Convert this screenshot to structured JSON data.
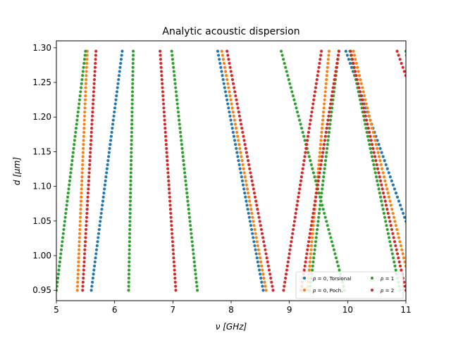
{
  "chart_data": {
    "type": "scatter",
    "title": "Analytic acoustic dispersion",
    "xlabel": "ν [GHz]",
    "ylabel": "d [μm]",
    "xlim": [
      5,
      11
    ],
    "ylim": [
      0.935,
      1.31
    ],
    "xticks": [
      5,
      6,
      7,
      8,
      9,
      10,
      11
    ],
    "yticks": [
      0.95,
      1.0,
      1.05,
      1.1,
      1.15,
      1.2,
      1.25,
      1.3
    ],
    "xtick_labels": [
      "5",
      "6",
      "7",
      "8",
      "9",
      "10",
      "11"
    ],
    "ytick_labels": [
      "0.95",
      "1.00",
      "1.05",
      "1.10",
      "1.15",
      "1.20",
      "1.25",
      "1.30"
    ],
    "legend": {
      "placement": "lower-right",
      "ncol": 2
    },
    "d_range": [
      0.95,
      1.295
    ],
    "points_per_branch": 60,
    "series": [
      {
        "name": "p = 0, Torsional",
        "legend_parts": [
          "p",
          " = 0, Torsional"
        ],
        "color": "#1f77b4",
        "branches": [
          {
            "nu_at_d_min": 5.6,
            "nu_at_d_max": 6.13
          },
          {
            "nu_at_d_min": 8.55,
            "nu_at_d_max": 7.77
          },
          {
            "nu_at_d_min": 11.42,
            "nu_at_d_max": 9.97
          }
        ]
      },
      {
        "name": "p = 0, Poch.",
        "legend_parts": [
          "p",
          " = 0, Poch."
        ],
        "color": "#ff7f0e",
        "branches": [
          {
            "nu_at_d_min": 5.36,
            "nu_at_d_max": 5.53
          },
          {
            "nu_at_d_min": 8.6,
            "nu_at_d_max": 7.84
          },
          {
            "nu_at_d_min": 9.31,
            "nu_at_d_max": 9.68
          },
          {
            "nu_at_d_min": 11.1,
            "nu_at_d_max": 10.1
          }
        ]
      },
      {
        "name": "p = 1",
        "legend_parts": [
          "p",
          " = 1"
        ],
        "color": "#2ca02c",
        "branches": [
          {
            "nu_at_d_min": 5.0,
            "nu_at_d_max": 5.5
          },
          {
            "nu_at_d_min": 6.24,
            "nu_at_d_max": 6.32
          },
          {
            "nu_at_d_min": 7.42,
            "nu_at_d_max": 6.98
          },
          {
            "nu_at_d_min": 9.95,
            "nu_at_d_max": 8.86
          },
          {
            "nu_at_d_min": 9.35,
            "nu_at_d_max": 9.85
          },
          {
            "nu_at_d_min": 10.9,
            "nu_at_d_max": 10.04
          },
          {
            "nu_at_d_min": 11.6,
            "nu_at_d_max": 11.0
          }
        ]
      },
      {
        "name": "p = 2",
        "legend_parts": [
          "p",
          " = 2"
        ],
        "color": "#d62728",
        "branches": [
          {
            "nu_at_d_min": 5.45,
            "nu_at_d_max": 5.68
          },
          {
            "nu_at_d_min": 7.05,
            "nu_at_d_max": 6.78
          },
          {
            "nu_at_d_min": 8.72,
            "nu_at_d_max": 7.93
          },
          {
            "nu_at_d_min": 8.9,
            "nu_at_d_max": 9.55
          },
          {
            "nu_at_d_min": 9.2,
            "nu_at_d_max": 9.85
          },
          {
            "nu_at_d_min": 11.0,
            "nu_at_d_max": 10.05
          },
          {
            "nu_at_d_min": 12.3,
            "nu_at_d_max": 10.85
          }
        ]
      }
    ]
  }
}
